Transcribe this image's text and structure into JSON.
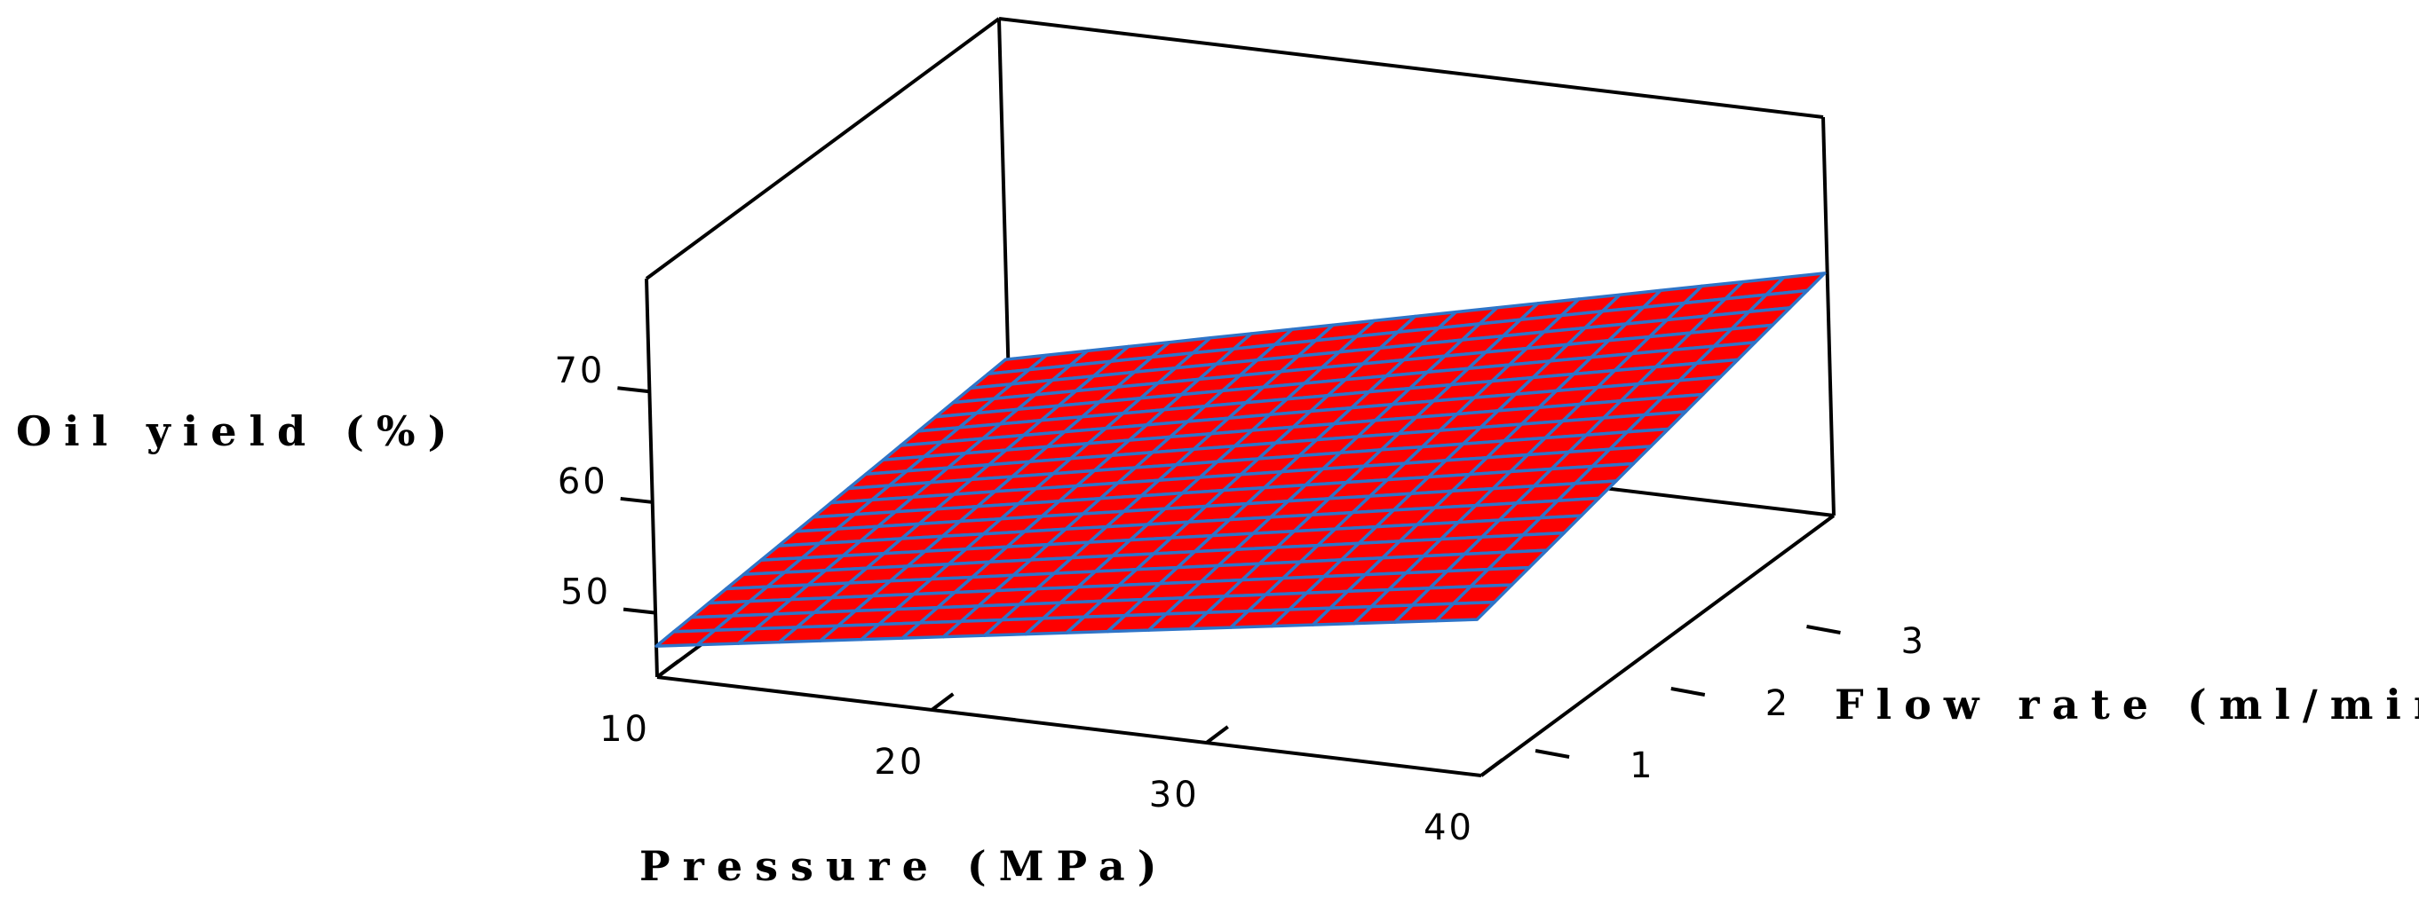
{
  "chart_data": {
    "type": "surface",
    "title": "",
    "xlabel": "Pressure (MPa)",
    "ylabel": "Flow rate (ml/min)",
    "zlabel": "Oil yield (%)",
    "x_ticks": [
      "10",
      "20",
      "30",
      "40"
    ],
    "y_ticks": [
      "1",
      "2",
      "3"
    ],
    "z_ticks": [
      "50",
      "60",
      "70"
    ],
    "x_range": [
      10,
      40
    ],
    "y_range": [
      0.6,
      3.2
    ],
    "z_range": [
      44.2,
      80.2
    ],
    "surface_corners": {
      "x10_y0.6": 47.0,
      "x40_y0.6": 58.3,
      "x10_y3.2": 58.3,
      "x40_y3.2": 75.0
    },
    "grid": false,
    "surface_color": "#ff0000",
    "mesh_color": "#2e74c8"
  }
}
